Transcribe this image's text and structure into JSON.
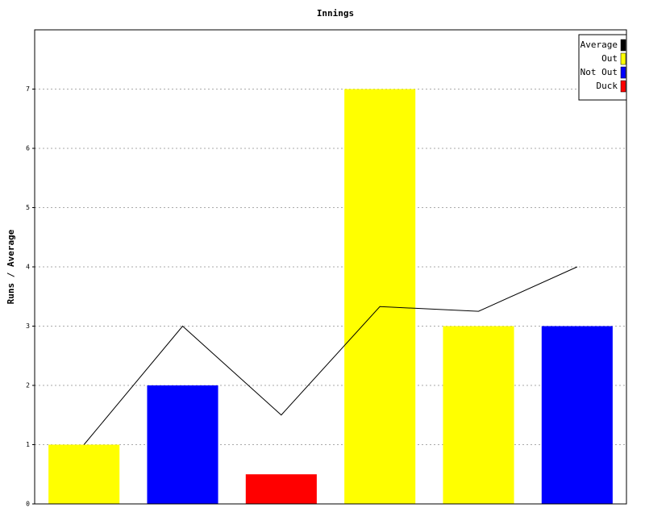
{
  "chart_data": {
    "type": "bar",
    "title": "Innings",
    "y_label": "Runs / Average",
    "categories": [
      null,
      null,
      null,
      null,
      null,
      null
    ],
    "series": [
      {
        "name": "Average",
        "color": "#000000",
        "type": "line",
        "values": [
          1,
          3,
          1.5,
          3.33,
          3.25,
          4
        ]
      },
      {
        "name": "Out",
        "color": "#ffff00",
        "values": [
          1,
          null,
          null,
          7,
          3,
          null
        ]
      },
      {
        "name": "Not Out",
        "color": "#0000ff",
        "values": [
          null,
          2,
          null,
          null,
          null,
          3
        ]
      },
      {
        "name": "Duck",
        "color": "#ff0000",
        "values": [
          null,
          null,
          0.5,
          null,
          null,
          null
        ]
      }
    ],
    "ylim": [
      0,
      8
    ],
    "yticks": [
      0,
      1,
      2,
      3,
      4,
      5,
      6,
      7
    ],
    "grid": true,
    "legend": "top-right"
  }
}
